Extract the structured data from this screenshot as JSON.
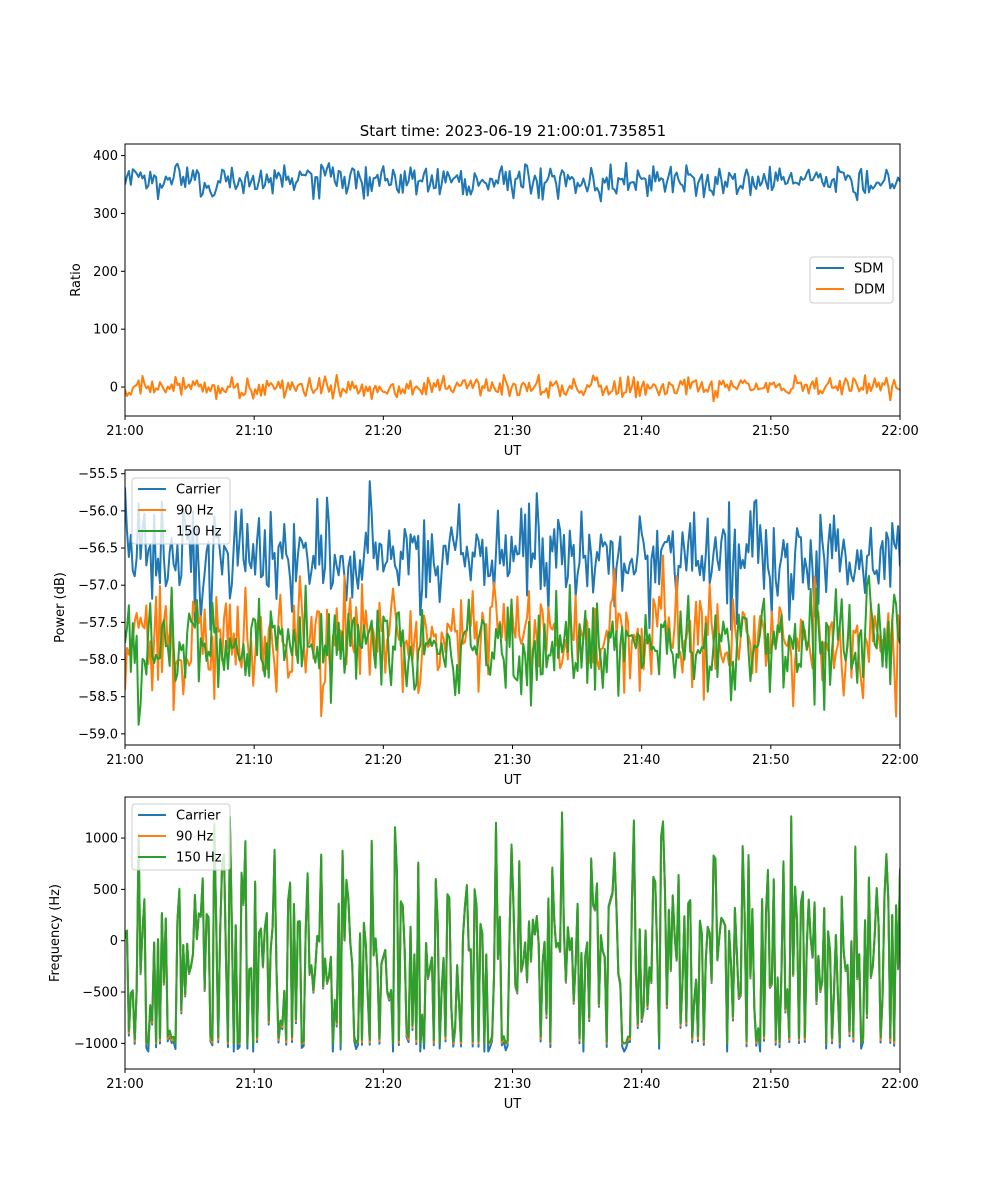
{
  "figure_title": "Start time: 2023-06-19 21:00:01.735851",
  "colors": {
    "blue": "#1f77b4",
    "orange": "#ff7f0e",
    "green": "#2ca02c"
  },
  "chart_data": [
    {
      "type": "line",
      "xlabel": "UT",
      "ylabel": "Ratio",
      "xlim": [
        "21:00",
        "22:00"
      ],
      "ylim": [
        -50,
        420
      ],
      "x_ticks": [
        "21:00",
        "21:10",
        "21:20",
        "21:30",
        "21:40",
        "21:50",
        "22:00"
      ],
      "y_ticks": [
        0,
        100,
        200,
        300,
        400
      ],
      "y_tick_labels": [
        "0",
        "100",
        "200",
        "300",
        "400"
      ],
      "legend_placement": "center-right",
      "sample_count": 400,
      "series": [
        {
          "name": "SDM",
          "color": "#1f77b4",
          "mean": 357,
          "amplitude": 14,
          "min": 318,
          "max": 402
        },
        {
          "name": "DDM",
          "color": "#ff7f0e",
          "mean": -1,
          "amplitude": 9,
          "min": -28,
          "max": 21
        }
      ]
    },
    {
      "type": "line",
      "xlabel": "UT",
      "ylabel": "Power (dB)",
      "xlim": [
        "21:00",
        "22:00"
      ],
      "ylim": [
        -59.15,
        -55.45
      ],
      "x_ticks": [
        "21:00",
        "21:10",
        "21:20",
        "21:30",
        "21:40",
        "21:50",
        "22:00"
      ],
      "y_ticks": [
        -59.0,
        -58.5,
        -58.0,
        -57.5,
        -57.0,
        -56.5,
        -56.0,
        -55.5
      ],
      "y_tick_labels": [
        "−59.0",
        "−58.5",
        "−58.0",
        "−57.5",
        "−57.0",
        "−56.5",
        "−56.0",
        "−55.5"
      ],
      "legend_placement": "upper-left",
      "sample_count": 400,
      "series": [
        {
          "name": "Carrier",
          "color": "#1f77b4",
          "mean": -56.6,
          "amplitude": 0.35,
          "min": -57.6,
          "max": -55.6
        },
        {
          "name": "90 Hz",
          "color": "#ff7f0e",
          "mean": -57.7,
          "amplitude": 0.35,
          "min": -58.85,
          "max": -56.4
        },
        {
          "name": "150 Hz",
          "color": "#2ca02c",
          "mean": -57.8,
          "amplitude": 0.35,
          "min": -59.0,
          "max": -56.6
        }
      ]
    },
    {
      "type": "line",
      "xlabel": "UT",
      "ylabel": "Frequency (Hz)",
      "xlim": [
        "21:00",
        "22:00"
      ],
      "ylim": [
        -1250,
        1400
      ],
      "x_ticks": [
        "21:00",
        "21:10",
        "21:20",
        "21:30",
        "21:40",
        "21:50",
        "22:00"
      ],
      "y_ticks": [
        -1000,
        -500,
        0,
        500,
        1000
      ],
      "y_tick_labels": [
        "−1000",
        "−500",
        "0",
        "500",
        "1000"
      ],
      "legend_placement": "upper-left",
      "sample_count": 400,
      "series": [
        {
          "name": "Carrier",
          "color": "#1f77b4",
          "mean": 0,
          "amplitude": 520,
          "min": -1080,
          "max": 1150
        },
        {
          "name": "90 Hz",
          "color": "#ff7f0e",
          "mean": 0,
          "amplitude": 520,
          "min": -1000,
          "max": 1180
        },
        {
          "name": "150 Hz",
          "color": "#2ca02c",
          "mean": 0,
          "amplitude": 520,
          "min": -1000,
          "max": 1250
        }
      ]
    }
  ]
}
